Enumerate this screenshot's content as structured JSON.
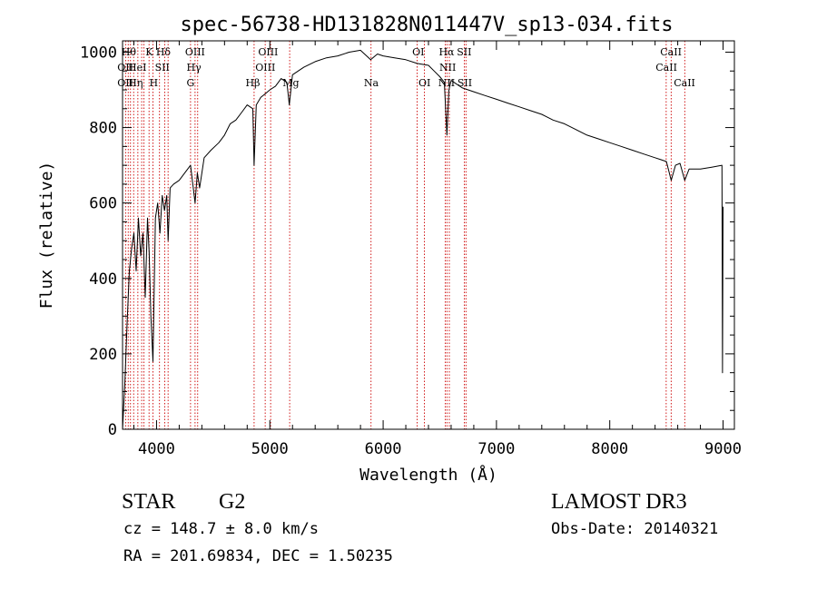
{
  "chart_data": {
    "type": "line",
    "title": "spec-56738-HD131828N011447V_sp13-034.fits",
    "xlabel": "Wavelength (Å)",
    "ylabel": "Flux (relative)",
    "xlim": [
      3700,
      9100
    ],
    "ylim": [
      0,
      1030
    ],
    "xticks": [
      4000,
      5000,
      6000,
      7000,
      8000,
      9000
    ],
    "yticks": [
      0,
      200,
      400,
      600,
      800,
      1000
    ],
    "series": [
      {
        "name": "flux",
        "x": [
          3700,
          3720,
          3740,
          3760,
          3780,
          3800,
          3820,
          3840,
          3860,
          3880,
          3900,
          3920,
          3935,
          3950,
          3968,
          3990,
          4010,
          4030,
          4050,
          4070,
          4090,
          4102,
          4120,
          4150,
          4200,
          4250,
          4300,
          4340,
          4360,
          4380,
          4420,
          4480,
          4550,
          4600,
          4650,
          4700,
          4750,
          4800,
          4850,
          4861,
          4880,
          4920,
          4960,
          5000,
          5050,
          5100,
          5150,
          5172,
          5200,
          5300,
          5400,
          5500,
          5600,
          5700,
          5800,
          5890,
          5950,
          6000,
          6100,
          6200,
          6300,
          6400,
          6450,
          6500,
          6540,
          6563,
          6580,
          6600,
          6650,
          6700,
          6800,
          6900,
          7000,
          7100,
          7200,
          7300,
          7400,
          7500,
          7600,
          7700,
          7800,
          7900,
          8000,
          8100,
          8200,
          8300,
          8400,
          8450,
          8500,
          8542,
          8580,
          8620,
          8662,
          8700,
          8800,
          8900,
          8990,
          8995,
          9000
        ],
        "y": [
          0,
          120,
          280,
          420,
          480,
          520,
          420,
          560,
          460,
          520,
          350,
          560,
          470,
          300,
          180,
          560,
          600,
          520,
          620,
          580,
          620,
          500,
          640,
          650,
          660,
          680,
          700,
          600,
          680,
          640,
          720,
          740,
          760,
          780,
          810,
          820,
          840,
          860,
          850,
          700,
          860,
          880,
          890,
          900,
          910,
          930,
          920,
          860,
          940,
          960,
          975,
          985,
          990,
          1000,
          1005,
          980,
          995,
          990,
          985,
          980,
          970,
          965,
          950,
          935,
          920,
          780,
          900,
          925,
          915,
          905,
          895,
          885,
          875,
          865,
          855,
          845,
          835,
          820,
          810,
          795,
          780,
          770,
          760,
          750,
          740,
          730,
          720,
          715,
          710,
          660,
          700,
          705,
          660,
          690,
          690,
          695,
          700,
          150,
          590
        ]
      }
    ],
    "line_markers": [
      {
        "wavelength": 3727,
        "label": "OII"
      },
      {
        "wavelength": 3750,
        "label": "OII"
      },
      {
        "wavelength": 3770,
        "label": "Hθ"
      },
      {
        "wavelength": 3798,
        "label": "Hθ"
      },
      {
        "wavelength": 3835,
        "label": "Hη"
      },
      {
        "wavelength": 3869,
        "label": "HeI"
      },
      {
        "wavelength": 3889,
        "label": "Hζ"
      },
      {
        "wavelength": 3934,
        "label": "K"
      },
      {
        "wavelength": 3968,
        "label": "H"
      },
      {
        "wavelength": 4026,
        "label": "HeI"
      },
      {
        "wavelength": 4072,
        "label": "SII"
      },
      {
        "wavelength": 4102,
        "label": "Hδ"
      },
      {
        "wavelength": 4300,
        "label": "G"
      },
      {
        "wavelength": 4340,
        "label": "Hγ"
      },
      {
        "wavelength": 4363,
        "label": "OIII"
      },
      {
        "wavelength": 4861,
        "label": "Hβ"
      },
      {
        "wavelength": 4959,
        "label": "OIII"
      },
      {
        "wavelength": 5007,
        "label": "OIII"
      },
      {
        "wavelength": 5175,
        "label": "Mg"
      },
      {
        "wavelength": 5893,
        "label": "Na"
      },
      {
        "wavelength": 6300,
        "label": "OI"
      },
      {
        "wavelength": 6364,
        "label": "OI"
      },
      {
        "wavelength": 6548,
        "label": "NII"
      },
      {
        "wavelength": 6563,
        "label": "Hα"
      },
      {
        "wavelength": 6584,
        "label": "NII"
      },
      {
        "wavelength": 6717,
        "label": "SII"
      },
      {
        "wavelength": 6731,
        "label": "SII"
      },
      {
        "wavelength": 8498,
        "label": "CaII"
      },
      {
        "wavelength": 8542,
        "label": "CaII"
      },
      {
        "wavelength": 8662,
        "label": "CaII"
      }
    ],
    "line_labels": [
      {
        "text": "Hθ",
        "wavelength": 3755,
        "row": 0
      },
      {
        "text": "K",
        "wavelength": 3935,
        "row": 0
      },
      {
        "text": "Hδ",
        "wavelength": 4060,
        "row": 0
      },
      {
        "text": "OIII",
        "wavelength": 4340,
        "row": 0
      },
      {
        "text": "OIII",
        "wavelength": 4985,
        "row": 0
      },
      {
        "text": "OI",
        "wavelength": 6310,
        "row": 0
      },
      {
        "text": "Hα",
        "wavelength": 6560,
        "row": 0
      },
      {
        "text": "SII",
        "wavelength": 6715,
        "row": 0
      },
      {
        "text": "CaII",
        "wavelength": 8540,
        "row": 0
      },
      {
        "text": "OII",
        "wavelength": 3725,
        "row": 1
      },
      {
        "text": "HeI",
        "wavelength": 3830,
        "row": 1
      },
      {
        "text": "SII",
        "wavelength": 4050,
        "row": 1
      },
      {
        "text": "Hγ",
        "wavelength": 4330,
        "row": 1
      },
      {
        "text": "OIII",
        "wavelength": 4960,
        "row": 1
      },
      {
        "text": "NII",
        "wavelength": 6570,
        "row": 1
      },
      {
        "text": "CaII",
        "wavelength": 8500,
        "row": 1
      },
      {
        "text": "OII",
        "wavelength": 3725,
        "row": 2
      },
      {
        "text": "Hη",
        "wavelength": 3815,
        "row": 2
      },
      {
        "text": "H",
        "wavelength": 3975,
        "row": 2
      },
      {
        "text": "G",
        "wavelength": 4300,
        "row": 2
      },
      {
        "text": "Hβ",
        "wavelength": 4850,
        "row": 2
      },
      {
        "text": "Mg",
        "wavelength": 5185,
        "row": 2
      },
      {
        "text": "Na",
        "wavelength": 5895,
        "row": 2
      },
      {
        "text": "OI",
        "wavelength": 6365,
        "row": 2
      },
      {
        "text": "NII",
        "wavelength": 6560,
        "row": 2
      },
      {
        "text": "SII",
        "wavelength": 6720,
        "row": 2
      },
      {
        "text": "CaII",
        "wavelength": 8660,
        "row": 2
      }
    ]
  },
  "info": {
    "class": "STAR",
    "subclass": "G2",
    "survey": "LAMOST DR3",
    "cz": "cz = 148.7 ± 8.0 km/s",
    "obs_date": "Obs-Date: 20140321",
    "radec": "RA = 201.69834, DEC =   1.50235"
  },
  "colors": {
    "line": "#000000",
    "marker": "#cc0000",
    "axis": "#000000"
  }
}
